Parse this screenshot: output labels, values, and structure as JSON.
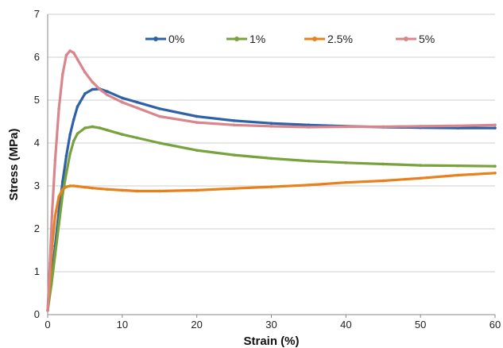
{
  "chart_data": {
    "type": "line",
    "title": "",
    "xlabel": "Strain (%)",
    "ylabel": "Stress (MPa)",
    "xlim": [
      0,
      60
    ],
    "ylim": [
      0,
      7
    ],
    "x_ticks": [
      "0",
      "10",
      "20",
      "30",
      "40",
      "50",
      "60"
    ],
    "y_ticks": [
      "0",
      "1",
      "2",
      "3",
      "4",
      "5",
      "6",
      "7"
    ],
    "grid": "horizontal",
    "legend_position": "top",
    "series": [
      {
        "name": "0%",
        "color": "#2e62a8",
        "x": [
          0,
          0.5,
          1,
          1.5,
          2,
          2.5,
          3,
          3.5,
          4,
          5,
          6,
          7,
          8,
          10,
          12,
          15,
          20,
          25,
          30,
          35,
          40,
          45,
          50,
          55,
          60
        ],
        "y": [
          0.1,
          0.8,
          1.6,
          2.4,
          3.1,
          3.7,
          4.2,
          4.55,
          4.85,
          5.15,
          5.25,
          5.26,
          5.2,
          5.05,
          4.95,
          4.8,
          4.62,
          4.52,
          4.46,
          4.42,
          4.39,
          4.37,
          4.36,
          4.35,
          4.35
        ]
      },
      {
        "name": "1%",
        "color": "#77a23c",
        "x": [
          0,
          0.5,
          1,
          1.5,
          2,
          2.5,
          3,
          3.5,
          4,
          5,
          6,
          7,
          8,
          10,
          12,
          15,
          20,
          25,
          30,
          35,
          40,
          45,
          50,
          55,
          60
        ],
        "y": [
          0.1,
          0.7,
          1.4,
          2.1,
          2.8,
          3.3,
          3.75,
          4.05,
          4.22,
          4.35,
          4.38,
          4.35,
          4.3,
          4.2,
          4.12,
          4.0,
          3.83,
          3.72,
          3.64,
          3.58,
          3.54,
          3.51,
          3.48,
          3.47,
          3.46
        ]
      },
      {
        "name": "2.5%",
        "color": "#e8801c",
        "x": [
          0,
          0.3,
          0.6,
          1,
          1.5,
          2,
          2.5,
          3,
          3.5,
          4,
          5,
          6,
          8,
          10,
          12,
          15,
          20,
          25,
          30,
          35,
          40,
          45,
          50,
          55,
          60
        ],
        "y": [
          0.1,
          0.8,
          1.6,
          2.3,
          2.75,
          2.92,
          2.98,
          3.0,
          3.0,
          2.99,
          2.97,
          2.95,
          2.92,
          2.9,
          2.88,
          2.88,
          2.9,
          2.94,
          2.98,
          3.02,
          3.08,
          3.12,
          3.18,
          3.25,
          3.3
        ]
      },
      {
        "name": "5%",
        "color": "#d9858c",
        "x": [
          0,
          0.3,
          0.6,
          1,
          1.5,
          2,
          2.5,
          3,
          3.5,
          4,
          5,
          6,
          7,
          8,
          10,
          12,
          15,
          20,
          25,
          30,
          35,
          40,
          45,
          50,
          55,
          60
        ],
        "y": [
          0.1,
          1.2,
          2.4,
          3.6,
          4.8,
          5.6,
          6.05,
          6.15,
          6.1,
          5.95,
          5.65,
          5.42,
          5.25,
          5.12,
          4.95,
          4.82,
          4.62,
          4.48,
          4.42,
          4.39,
          4.37,
          4.38,
          4.38,
          4.39,
          4.4,
          4.42
        ]
      }
    ]
  }
}
